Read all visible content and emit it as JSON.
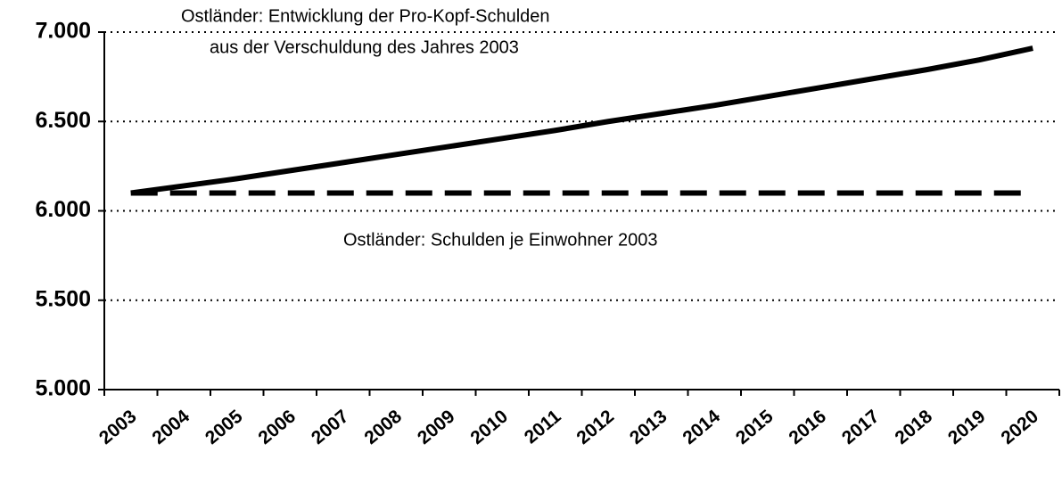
{
  "chart_data": {
    "type": "line",
    "annotations": [
      "Ostländer: Entwicklung der Pro-Kopf-Schulden",
      "aus der Verschuldung des Jahres 2003",
      "Ostländer: Schulden je Einwohner 2003"
    ],
    "categories": [
      "2003",
      "2004",
      "2005",
      "2006",
      "2007",
      "2008",
      "2009",
      "2010",
      "2011",
      "2012",
      "2013",
      "2014",
      "2015",
      "2016",
      "2017",
      "2018",
      "2019",
      "2020"
    ],
    "series": [
      {
        "color": "#000000",
        "dash": "solid",
        "values": [
          6100,
          6140,
          6180,
          6225,
          6270,
          6315,
          6360,
          6405,
          6450,
          6500,
          6545,
          6590,
          6640,
          6690,
          6740,
          6790,
          6845,
          6910
        ]
      },
      {
        "color": "#000000",
        "dash": "dashed",
        "values": [
          6100,
          6100,
          6100,
          6100,
          6100,
          6100,
          6100,
          6100,
          6100,
          6100,
          6100,
          6100,
          6100,
          6100,
          6100,
          6100,
          6100,
          6100
        ]
      }
    ],
    "ylim": [
      5000,
      7000
    ],
    "yticks": [
      {
        "value": 5000,
        "label": "5.000"
      },
      {
        "value": 5500,
        "label": "5.500"
      },
      {
        "value": 6000,
        "label": "6.000"
      },
      {
        "value": 6500,
        "label": "6.500"
      },
      {
        "value": 7000,
        "label": "7.000"
      }
    ],
    "grid": true
  }
}
